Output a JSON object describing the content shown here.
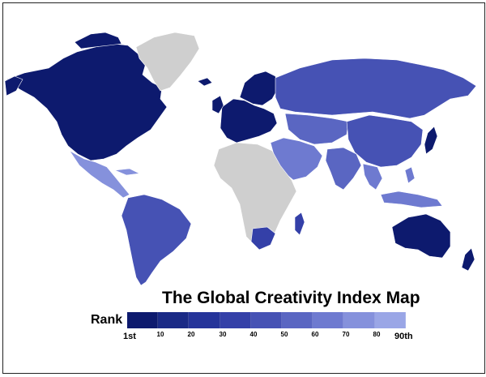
{
  "title": "The Global Creativity Index Map",
  "legend": {
    "label": "Rank",
    "start_label": "1st",
    "end_label": "90th",
    "ticks": [
      "10",
      "20",
      "30",
      "40",
      "50",
      "60",
      "70",
      "80"
    ],
    "colors": [
      "#0d1a6e",
      "#1a2a86",
      "#25349a",
      "#3440a8",
      "#4652b4",
      "#5a66c2",
      "#6e7ad0",
      "#8591dc",
      "#9aa6e6"
    ]
  },
  "colors": {
    "no_data": "#cfcfcf",
    "borders": "#ffffff"
  },
  "regions": {
    "north_america": "#0d1a6e",
    "greenland": "no_data",
    "western_europe": "#0d1a6e",
    "scandinavia": "#0d1a6e",
    "russia": "#4652b4",
    "central_asia": "#5a66c2",
    "china": "#4652b4",
    "japan": "#0d1a6e",
    "australia": "#0d1a6e",
    "new_zealand": "#0d1a6e",
    "mexico": "#8591dc",
    "south_america": "#4652b4",
    "india": "#5a66c2",
    "middle_east": "#6e7ad0",
    "africa": "no_data",
    "south_africa": "#3440a8",
    "southeast_asia": "#6e7ad0"
  }
}
